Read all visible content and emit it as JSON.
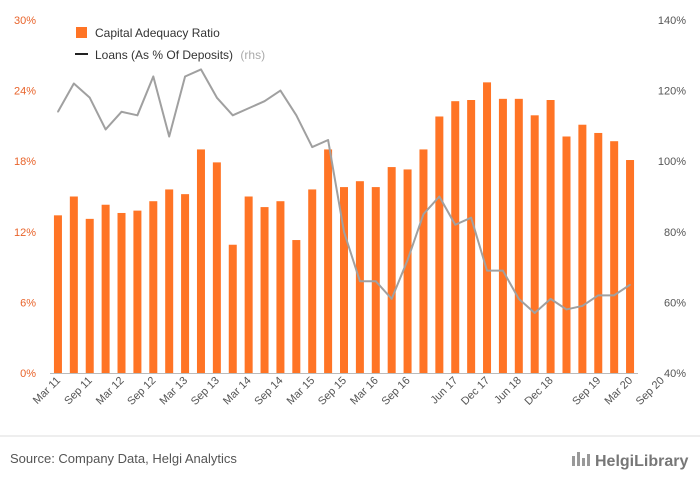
{
  "chart_data": {
    "type": "bar",
    "legend": {
      "placement": "top-left",
      "bar_label": "Capital Adequacy Ratio",
      "line_label": "Loans (As % Of Deposits)",
      "line_note": "(rhs)"
    },
    "y_left": {
      "ticks": [
        "0%",
        "6%",
        "12%",
        "18%",
        "24%",
        "30%"
      ],
      "range": [
        0,
        30
      ]
    },
    "y_right": {
      "ticks": [
        "40%",
        "60%",
        "80%",
        "100%",
        "120%",
        "140%"
      ],
      "range": [
        40,
        140
      ]
    },
    "x_tick_labels": [
      "Mar 11",
      "Sep 11",
      "Mar 12",
      "Sep 12",
      "Mar 13",
      "Sep 13",
      "Mar 14",
      "Sep 14",
      "Mar 15",
      "Sep 15",
      "Mar 16",
      "Sep 16",
      "Jun 17",
      "Dec 17",
      "Jun 18",
      "Dec 18",
      "Sep 19",
      "Mar 20",
      "Sep 20"
    ],
    "x_tick_positions": [
      0,
      2,
      4,
      6,
      8,
      10,
      12,
      14,
      16,
      18,
      20,
      22,
      25,
      27,
      29,
      31,
      34,
      36,
      38
    ],
    "grid": false,
    "series": [
      {
        "name": "Capital Adequacy Ratio",
        "type": "bar",
        "axis": "left",
        "values": [
          13.4,
          15.0,
          13.1,
          14.3,
          13.6,
          13.8,
          14.6,
          15.6,
          15.2,
          19.0,
          17.9,
          10.9,
          15.0,
          14.1,
          14.6,
          11.3,
          15.6,
          19.0,
          15.8,
          16.3,
          15.8,
          17.5,
          17.3,
          19.0,
          21.8,
          23.1,
          23.2,
          24.7,
          23.3,
          23.3,
          21.9,
          23.2,
          20.1,
          21.1,
          20.4,
          19.7,
          18.1
        ]
      },
      {
        "name": "Loans (As % Of Deposits)",
        "type": "line",
        "axis": "right",
        "values": [
          114,
          122,
          118,
          109,
          114,
          113,
          124,
          107,
          124,
          126,
          118,
          113,
          115,
          117,
          120,
          113,
          104,
          106,
          80,
          66,
          66,
          61,
          72,
          85,
          90,
          82,
          84,
          69,
          69,
          61,
          57,
          61,
          58,
          59,
          62,
          62,
          65
        ]
      }
    ],
    "colors": {
      "bar": "#ff7425",
      "line": "#a0a0a0",
      "left_axis_text": "#e8632a",
      "legend_line": "#222222"
    }
  },
  "footer": {
    "source": "Source: Company Data, Helgi Analytics",
    "brand": "HelgiLibrary"
  }
}
